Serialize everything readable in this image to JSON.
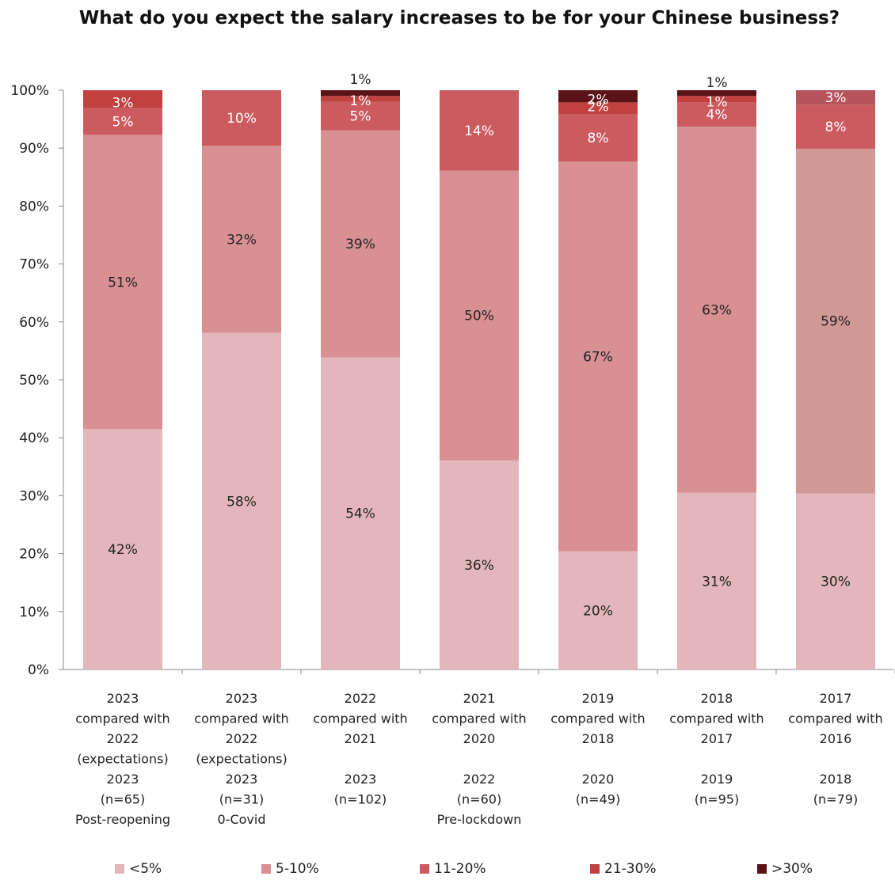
{
  "chart_data": {
    "type": "bar",
    "stacked": true,
    "title": "What do you expect the salary increases to be for your Chinese business?",
    "ylim": [
      0,
      100
    ],
    "yticks": [
      "0%",
      "10%",
      "20%",
      "30%",
      "40%",
      "50%",
      "60%",
      "70%",
      "80%",
      "90%",
      "100%"
    ],
    "categories": [
      [
        "2023",
        "compared with",
        "2022",
        "(expectations)",
        "2023",
        "(n=65)",
        "Post-reopening"
      ],
      [
        "2023",
        "compared with",
        "2022",
        "(expectations)",
        "2023",
        "(n=31)",
        "0-Covid"
      ],
      [
        "2022",
        "compared with",
        "2021",
        "",
        "2023",
        "(n=102)",
        ""
      ],
      [
        "2021",
        "compared with",
        "2020",
        "",
        "2022",
        "(n=60)",
        "Pre-lockdown"
      ],
      [
        "2019",
        "compared with",
        "2018",
        "",
        "2020",
        "(n=49)",
        ""
      ],
      [
        "2018",
        "compared with",
        "2017",
        "",
        "2019",
        "(n=95)",
        ""
      ],
      [
        "2017",
        "compared with",
        "2016",
        "",
        "2018",
        "(n=79)",
        ""
      ]
    ],
    "series": [
      {
        "name": "<5%",
        "color": "#e3b7b9",
        "values": [
          41.5,
          58.1,
          53.9,
          36.1,
          20.4,
          30.5,
          30.4
        ],
        "labels": [
          "42%",
          "58%",
          "54%",
          "36%",
          "20%",
          "31%",
          "30%"
        ],
        "label_color": "#222222"
      },
      {
        "name": "5-10%",
        "color": "#d89093",
        "values": [
          50.8,
          32.3,
          39.2,
          50.0,
          67.3,
          63.2,
          59.5
        ],
        "labels": [
          "51%",
          "32%",
          "39%",
          "50%",
          "67%",
          "63%",
          "59%"
        ],
        "label_color": "#222222"
      },
      {
        "name": "11-20%",
        "color": "#cb5b5f",
        "values": [
          4.6,
          9.6,
          4.9,
          13.9,
          8.2,
          4.2,
          7.6
        ],
        "labels": [
          "5%",
          "10%",
          "5%",
          "14%",
          "8%",
          "4%",
          "8%"
        ],
        "label_color": "#ffffff"
      },
      {
        "name": "21-30%",
        "color": "#c0413f",
        "values": [
          3.1,
          0,
          1.0,
          0,
          2.0,
          1.1,
          2.5
        ],
        "labels": [
          "3%",
          "",
          "1%",
          "",
          "2%",
          "1%",
          "3%"
        ],
        "label_color": "#ffffff"
      },
      {
        "name": ">30%",
        "color": "#5a1418",
        "values": [
          0,
          0,
          1.0,
          0,
          2.1,
          1.0,
          0
        ],
        "labels": [
          "",
          "",
          "1%",
          "",
          "2%",
          "1%",
          ""
        ],
        "label_color": "#ffffff"
      }
    ],
    "bar_overrides": [
      {
        "bar": 6,
        "series": 1,
        "color": "#d19996"
      },
      {
        "bar": 6,
        "series": 3,
        "color": "#b7545b"
      }
    ],
    "legend_position": "bottom",
    "grid": false
  }
}
